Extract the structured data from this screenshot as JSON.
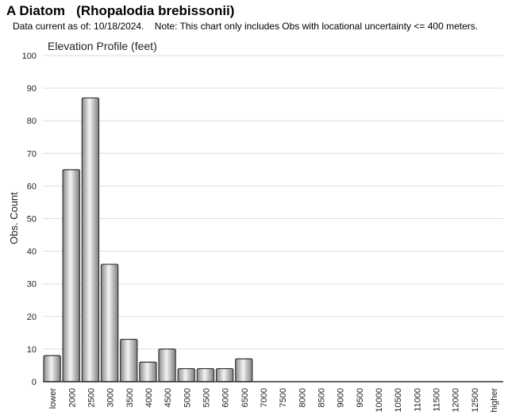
{
  "header": {
    "title": "A Diatom   (Rhopalodia brebissonii)",
    "note": "Data current as of: 10/18/2024.    Note: This chart only includes Obs with locational uncertainty <= 400 meters."
  },
  "chart_data": {
    "type": "bar",
    "title": "Elevation Profile (feet)",
    "xlabel": "",
    "ylabel": "Obs. Count",
    "ylim": [
      0,
      100
    ],
    "yticks": [
      0,
      10,
      20,
      30,
      40,
      50,
      60,
      70,
      80,
      90,
      100
    ],
    "grid": true,
    "categories": [
      "lower",
      "2000",
      "2500",
      "3000",
      "3500",
      "4000",
      "4500",
      "5000",
      "5500",
      "6000",
      "6500",
      "7000",
      "7500",
      "8000",
      "8500",
      "9000",
      "9500",
      "10000",
      "10500",
      "11000",
      "11500",
      "12000",
      "12500",
      "higher"
    ],
    "values": [
      8,
      65,
      87,
      36,
      13,
      6,
      10,
      4,
      4,
      4,
      7,
      0,
      0,
      0,
      0,
      0,
      0,
      0,
      0,
      0,
      0,
      0,
      0,
      0
    ],
    "colors": {
      "bar_fill_light": "#f4f4f4",
      "bar_fill_dark": "#8a8a8a",
      "bar_stroke": "#333333",
      "grid": "#dddddd",
      "axis": "#333333"
    }
  }
}
